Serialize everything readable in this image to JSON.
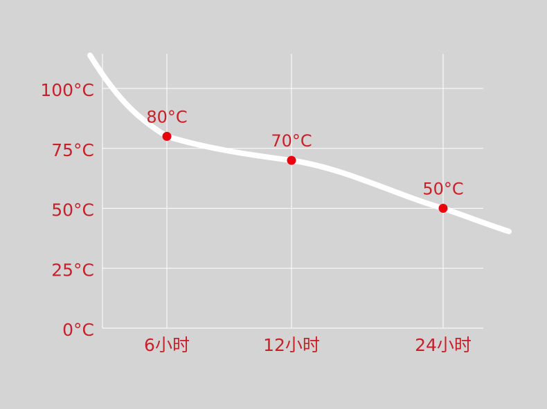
{
  "chart_data": {
    "type": "line",
    "title": "",
    "xlabel": "",
    "ylabel": "",
    "categories": [
      "6小时",
      "12小时",
      "24小时"
    ],
    "series": [
      {
        "values": [
          80,
          70,
          50
        ],
        "data_labels": [
          "80°C",
          "70°C",
          "50°C"
        ]
      }
    ],
    "y_ticks": [
      0,
      25,
      50,
      75,
      100
    ],
    "y_tick_labels": [
      "0°C",
      "25°C",
      "50°C",
      "75°C",
      "100°C"
    ],
    "ylim": [
      0,
      100
    ],
    "grid": true,
    "colors": {
      "background": "#d4d4d4",
      "line": "#ffffff",
      "points": "#e8000f",
      "text": "#c8202a",
      "grid": "#ffffff"
    }
  }
}
